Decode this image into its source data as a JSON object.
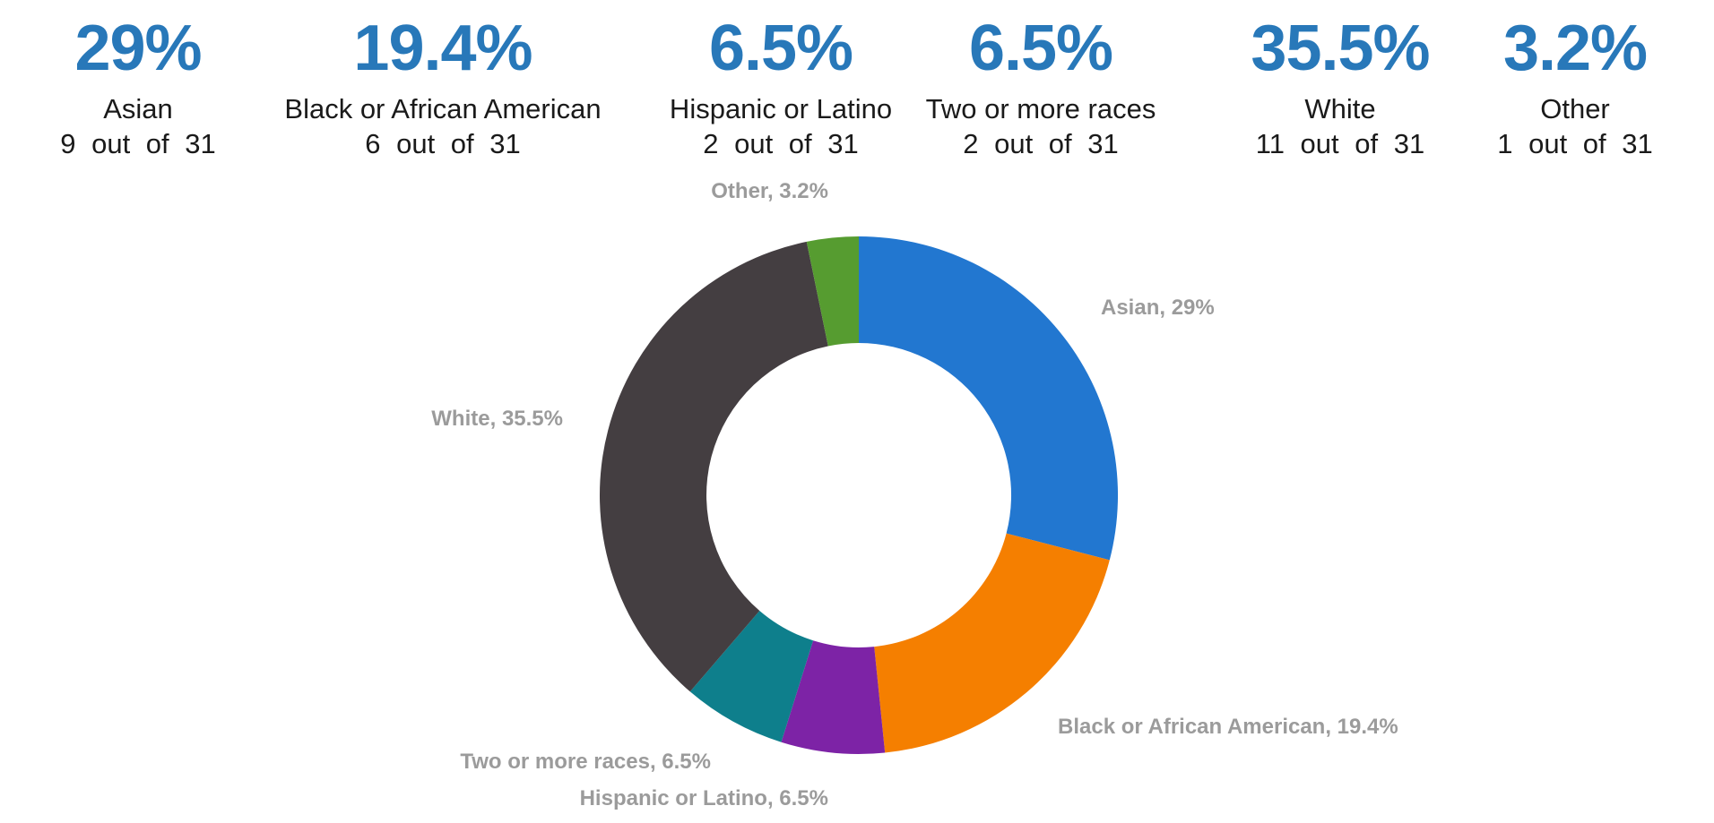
{
  "page": {
    "background": "#ffffff"
  },
  "colors": {
    "stat_value": "#2878b9",
    "stat_text": "#1a1a1a",
    "slice_label": "#9b9b9b"
  },
  "stats": [
    {
      "value": "29%",
      "label": "Asian",
      "count": "9 out of 31"
    },
    {
      "value": "19.4%",
      "label": "Black or African American",
      "count": "6 out of 31"
    },
    {
      "value": "6.5%",
      "label": "Hispanic or Latino",
      "count": "2 out of 31"
    },
    {
      "value": "6.5%",
      "label": "Two or more races",
      "count": "2 out of 31"
    },
    {
      "value": "35.5%",
      "label": "White",
      "count": "11 out of 31"
    },
    {
      "value": "3.2%",
      "label": "Other",
      "count": "1 out of 31"
    }
  ],
  "chart_data": {
    "type": "pie",
    "subtype": "donut",
    "title": "",
    "total": 31,
    "start_angle_deg": 0,
    "direction": "clockwise",
    "inner_radius_ratio": 0.588,
    "legend_position": "outside-labels",
    "categories": [
      "Asian",
      "Black or African American",
      "Hispanic or Latino",
      "Two or more races",
      "White",
      "Other"
    ],
    "values_pct": [
      29,
      19.4,
      6.5,
      6.5,
      35.5,
      3.2
    ],
    "counts": [
      9,
      6,
      2,
      2,
      11,
      1
    ],
    "slices": [
      {
        "label": "Asian",
        "count": 9,
        "pct": "29%",
        "color": "#2277d0",
        "callout": "Asian, 29%"
      },
      {
        "label": "Black or African American",
        "count": 6,
        "pct": "19.4%",
        "color": "#f57f00",
        "callout": "Black or African American, 19.4%"
      },
      {
        "label": "Hispanic or Latino",
        "count": 2,
        "pct": "6.5%",
        "color": "#7d23a6",
        "callout": "Hispanic or Latino, 6.5%"
      },
      {
        "label": "Two or more races",
        "count": 2,
        "pct": "6.5%",
        "color": "#0e7f8c",
        "callout": "Two or more races, 6.5%"
      },
      {
        "label": "White",
        "count": 11,
        "pct": "35.5%",
        "color": "#443e41",
        "callout": "White, 35.5%"
      },
      {
        "label": "Other",
        "count": 1,
        "pct": "3.2%",
        "color": "#569c30",
        "callout": "Other, 3.2%"
      }
    ]
  }
}
